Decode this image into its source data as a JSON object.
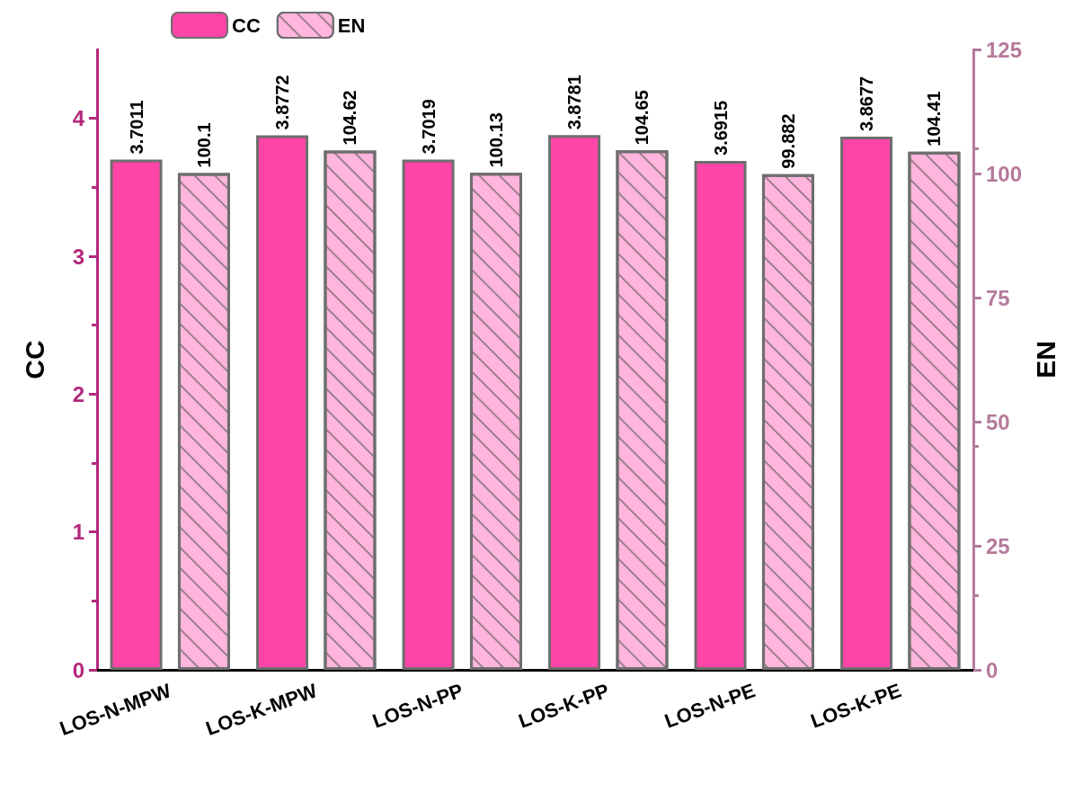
{
  "chart_data": {
    "type": "bar",
    "categories": [
      "LOS-N-MPW",
      "LOS-K-MPW",
      "LOS-N-PP",
      "LOS-K-PP",
      "LOS-N-PE",
      "LOS-K-PE"
    ],
    "ylabel": "CC",
    "y2label": "EN",
    "ylim": [
      0,
      4.5
    ],
    "yticks": [
      0,
      1,
      2,
      3,
      4
    ],
    "y2lim": [
      0,
      125
    ],
    "y2ticks": [
      0,
      25,
      50,
      75,
      100,
      125
    ],
    "series": [
      {
        "name": "CC",
        "color": "#ff45a8",
        "values": [
          3.7011,
          3.8772,
          3.7019,
          3.8781,
          3.6915,
          3.8677
        ]
      },
      {
        "name": "EN",
        "color": "#ffb5dd",
        "axis": "y2",
        "values": [
          100.1,
          104.62,
          100.13,
          104.65,
          99.882,
          104.41
        ]
      }
    ],
    "data_labels": true,
    "legend": "top left",
    "grid": false
  }
}
